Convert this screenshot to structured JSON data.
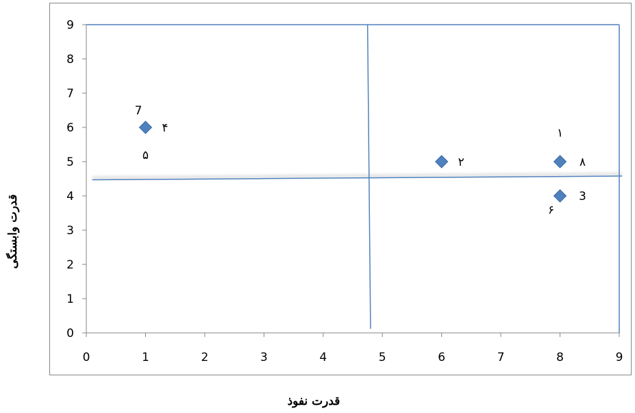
{
  "chart_data": {
    "type": "scatter",
    "title": "",
    "xlabel": "قدرت نفوذ",
    "ylabel": "قدرت وابستگی",
    "xlim": [
      0,
      9
    ],
    "ylim": [
      0,
      9
    ],
    "x_ticks": [
      "0",
      "1",
      "2",
      "3",
      "4",
      "5",
      "6",
      "7",
      "8",
      "9"
    ],
    "y_ticks": [
      "0",
      "1",
      "2",
      "3",
      "4",
      "5",
      "6",
      "7",
      "8",
      "9"
    ],
    "grid": false,
    "legend": "none",
    "series": [
      {
        "color": "#4F81BD",
        "marker": "diamond",
        "points": [
          {
            "x": 1,
            "y": 6
          },
          {
            "x": 6,
            "y": 5
          },
          {
            "x": 8,
            "y": 5
          },
          {
            "x": 8,
            "y": 4
          }
        ]
      }
    ],
    "point_labels": [
      {
        "text": "7",
        "x": 0.88,
        "y": 6.5
      },
      {
        "text": "۴",
        "x": 1.33,
        "y": 6.0
      },
      {
        "text": "۵",
        "x": 1.0,
        "y": 5.2
      },
      {
        "text": "۲",
        "x": 6.33,
        "y": 5.0
      },
      {
        "text": "۱",
        "x": 8.0,
        "y": 5.85
      },
      {
        "text": "۸",
        "x": 8.38,
        "y": 5.0
      },
      {
        "text": "3",
        "x": 8.38,
        "y": 4.0
      },
      {
        "text": "۶",
        "x": 7.85,
        "y": 3.6
      }
    ],
    "quadrant_lines": [
      {
        "from": [
          0.1,
          4.47
        ],
        "to": [
          9.05,
          4.58
        ]
      },
      {
        "from": [
          4.75,
          9.0
        ],
        "to": [
          4.8,
          0.12
        ]
      },
      {
        "from": [
          0.0,
          9.0
        ],
        "to": [
          9.0,
          9.0
        ]
      },
      {
        "from": [
          9.0,
          9.0
        ],
        "to": [
          9.0,
          0.0
        ]
      }
    ],
    "colors": {
      "line": "#4F81BD",
      "axis": "#868686",
      "border": "#868686"
    }
  }
}
